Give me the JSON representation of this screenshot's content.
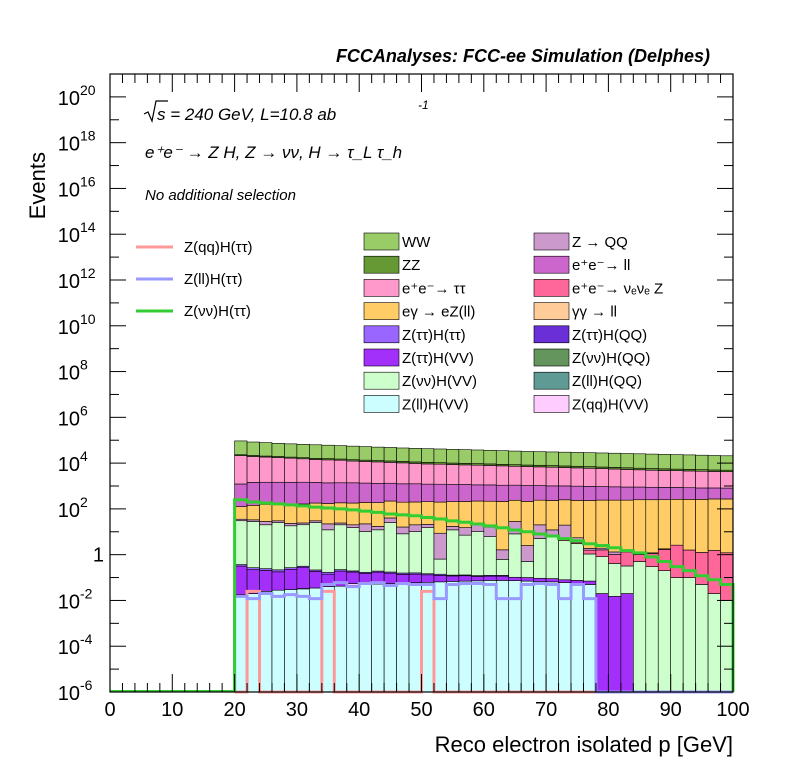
{
  "chart_data": {
    "type": "area",
    "header": "FCCAnalyses: FCC-ee Simulation (Delphes)",
    "xlabel": "Reco electron isolated p [GeV]",
    "ylabel": "Events",
    "xlim": [
      0,
      100
    ],
    "ylim": [
      1e-06,
      1e+21
    ],
    "yscale": "log",
    "x_ticks": [
      "0",
      "10",
      "20",
      "30",
      "40",
      "50",
      "60",
      "70",
      "80",
      "90",
      "100"
    ],
    "y_ticks": [
      {
        "base": "10",
        "exp": "20"
      },
      {
        "base": "10",
        "exp": "18"
      },
      {
        "base": "10",
        "exp": "16"
      },
      {
        "base": "10",
        "exp": "14"
      },
      {
        "base": "10",
        "exp": "12"
      },
      {
        "base": "10",
        "exp": "10"
      },
      {
        "base": "10",
        "exp": "8"
      },
      {
        "base": "10",
        "exp": "6"
      },
      {
        "base": "10",
        "exp": "4"
      },
      {
        "base": "10",
        "exp": "2"
      },
      {
        "base": "1",
        "exp": ""
      },
      {
        "base": "10",
        "exp": "-2"
      },
      {
        "base": "10",
        "exp": "-4"
      },
      {
        "base": "10",
        "exp": "-6"
      }
    ],
    "annotations": {
      "sqrt_s": "s = 240 GeV, L=10.8 ab",
      "lumi_exp": "-1",
      "process": "e⁺e⁻ → Z H, Z → νν, H → τ_L τ_h",
      "selection": "No additional selection"
    },
    "bin_edges": [
      20,
      22,
      24,
      26,
      28,
      30,
      32,
      34,
      36,
      38,
      40,
      42,
      44,
      46,
      48,
      50,
      52,
      54,
      56,
      58,
      60,
      62,
      64,
      66,
      68,
      70,
      72,
      74,
      76,
      78,
      80,
      82,
      84,
      86,
      88,
      90,
      92,
      94,
      96,
      98,
      100
    ],
    "stack": [
      {
        "name": "Z(ll)H(VV)",
        "color": "#ccfeff",
        "values": [
          0.018,
          0.02,
          0.025,
          0.028,
          0.03,
          0.032,
          0.035,
          0.04,
          0.042,
          0.045,
          0.05,
          0.052,
          0.055,
          0.058,
          0.06,
          0.062,
          0.065,
          0.068,
          0.07,
          0.072,
          0.075,
          0.075,
          0.073,
          0.07,
          0.068,
          0.065,
          0.06,
          0.055,
          0.05,
          1e-07,
          1e-07,
          1e-07,
          1e-07,
          1e-07,
          1e-07,
          1e-07,
          1e-07,
          1e-07,
          1e-07,
          1e-07
        ]
      },
      {
        "name": "Z(ll)H(QQ)",
        "color": "#609a95",
        "values": [
          0,
          0,
          0,
          0,
          0,
          0.001,
          0,
          0,
          0,
          0,
          0,
          0,
          0,
          0,
          0,
          0,
          0,
          0,
          0,
          0,
          0,
          0,
          0,
          0,
          0,
          0,
          0,
          0,
          0,
          0,
          0,
          0,
          0,
          0,
          0,
          0,
          0,
          0,
          0,
          0
        ]
      },
      {
        "name": "Z(qq)H(VV)",
        "color": "#ffccff",
        "values": [
          0,
          0,
          0,
          0,
          0,
          0,
          0,
          0,
          0,
          0.01,
          0,
          0,
          0,
          0,
          0,
          0,
          0,
          0,
          0,
          0,
          0,
          0,
          0,
          0,
          0,
          0,
          0,
          0,
          0,
          0,
          0,
          0,
          0,
          0,
          0,
          0,
          0,
          0,
          0,
          0
        ]
      },
      {
        "name": "Z(ττ)H(QQ)",
        "color": "#6a2fd7",
        "values": [
          0,
          0,
          0,
          0,
          0,
          0,
          0,
          0,
          0,
          0,
          3e-05,
          0,
          0,
          0,
          0,
          0,
          0,
          0,
          0,
          0,
          0,
          0,
          0,
          0,
          0,
          0,
          0,
          0,
          0,
          0,
          0,
          0,
          0,
          0,
          0,
          0,
          0,
          0,
          0,
          0
        ]
      },
      {
        "name": "Z(ττ)H(VV)",
        "color": "#a32ffb",
        "values": [
          0.3,
          0.2,
          0.18,
          0.15,
          0.2,
          0.25,
          0.15,
          0.1,
          0.15,
          0.12,
          0.1,
          0.12,
          0.1,
          0.08,
          0.08,
          0.07,
          0.06,
          0.05,
          0.05,
          0.04,
          0.04,
          0.04,
          0.03,
          0.03,
          0.025,
          0.025,
          0.02,
          0.02,
          0.02,
          0.02,
          0.015,
          0.02,
          0,
          0,
          0,
          0,
          0,
          0,
          0,
          0
        ]
      },
      {
        "name": "Z(ττ)H(ττ)",
        "color": "#9966ff",
        "values": [
          0.05,
          0.05,
          0.04,
          0.04,
          0.04,
          0.03,
          0.03,
          0.03,
          0.03,
          0.02,
          0.02,
          0.02,
          0.02,
          0.02,
          0.02,
          0.015,
          0.015,
          0.01,
          0.01,
          0.01,
          0.01,
          0.01,
          0,
          0,
          0,
          0,
          0,
          0,
          0,
          0,
          0,
          0,
          0,
          0,
          0,
          0,
          0,
          0,
          0,
          0
        ]
      },
      {
        "name": "Z(νν)H(VV)",
        "color": "#ccffcc",
        "values": [
          30,
          28,
          20,
          25,
          18,
          20,
          25,
          12,
          20,
          15,
          10,
          12,
          25,
          8,
          10,
          15,
          0.5,
          12,
          7,
          10,
          6,
          0.5,
          8,
          0.4,
          5,
          6,
          4,
          3,
          1,
          0.8,
          0.4,
          0.3,
          0.5,
          0.3,
          0.2,
          0.1,
          0.1,
          0.05,
          0.02,
          0.01
        ]
      },
      {
        "name": "Z(νν)H(QQ)",
        "color": "#64955d",
        "values": [
          0,
          0,
          0,
          0,
          0,
          0,
          0,
          0,
          0,
          0,
          0,
          0,
          0,
          0,
          0,
          0,
          0,
          0,
          0,
          0,
          0,
          0,
          0,
          0,
          0,
          0,
          0,
          0,
          0,
          0,
          0,
          0,
          0,
          0,
          0,
          0,
          0,
          0,
          0,
          0
        ]
      },
      {
        "name": "e⁺e⁻ → ν_e ν_e Z",
        "color": "#ff6699",
        "values": [
          0,
          0,
          0,
          0,
          0,
          0,
          0,
          0,
          0,
          0,
          0,
          0,
          0,
          0,
          0,
          0,
          0,
          0,
          0,
          0,
          0,
          0,
          0,
          0,
          0,
          0,
          0.5,
          0.4,
          0.5,
          0.8,
          0.6,
          1,
          0.5,
          0.8,
          1.5,
          2.5,
          1.5,
          1.2,
          1.5,
          1.2
        ]
      },
      {
        "name": "γγ → ll",
        "color": "#ffcc99",
        "values": [
          0,
          0,
          0,
          0,
          0,
          0,
          0,
          0,
          0,
          0,
          0,
          0,
          0,
          0,
          0,
          0,
          0,
          0,
          0,
          0,
          0,
          0,
          0,
          0,
          0,
          0,
          0,
          0,
          0,
          0,
          0,
          0,
          0,
          0,
          0,
          0,
          0,
          0,
          0,
          0
        ]
      },
      {
        "name": "Z → QQ",
        "color": "#cc99cc",
        "values": [
          5,
          5,
          8,
          5,
          5,
          4,
          5,
          10,
          4,
          5,
          12,
          5,
          15,
          8,
          10,
          6,
          8,
          5,
          8,
          10,
          10,
          1,
          20,
          2,
          15,
          6,
          15,
          2,
          0.3,
          0.3,
          0.3,
          0.2,
          0.1,
          0.1,
          0.1,
          0,
          0,
          0,
          0,
          0
        ]
      },
      {
        "name": "eγ → eZ(ll)",
        "color": "#ffcc66",
        "values": [
          90,
          110,
          130,
          130,
          130,
          140,
          150,
          150,
          160,
          160,
          170,
          170,
          180,
          180,
          180,
          185,
          190,
          190,
          195,
          200,
          200,
          210,
          210,
          210,
          220,
          220,
          230,
          230,
          230,
          240,
          240,
          240,
          250,
          250,
          250,
          260,
          260,
          260,
          270,
          270
        ]
      },
      {
        "name": "e⁺e⁻ → ll",
        "color": "#cc66cc",
        "values": [
          1100,
          1300,
          1300,
          1300,
          1300,
          1300,
          1250,
          1200,
          1200,
          1200,
          1150,
          1100,
          1100,
          1050,
          1050,
          1000,
          1000,
          950,
          950,
          900,
          900,
          870,
          850,
          830,
          800,
          780,
          760,
          750,
          730,
          700,
          680,
          660,
          650,
          630,
          620,
          600,
          580,
          560,
          550,
          540
        ]
      },
      {
        "name": "e⁺e⁻ → ττ",
        "color": "#ff99cc",
        "values": [
          20000,
          18000,
          17000,
          16000,
          15000,
          14000,
          13000,
          12500,
          12000,
          11000,
          10500,
          10000,
          9500,
          9000,
          8500,
          8000,
          7800,
          7500,
          7200,
          7000,
          6800,
          6500,
          6200,
          6000,
          5800,
          5600,
          5400,
          5200,
          5000,
          4800,
          4600,
          4400,
          4200,
          4000,
          3900,
          3800,
          3700,
          3600,
          3500,
          3400
        ]
      },
      {
        "name": "ZZ",
        "color": "#669933",
        "values": [
          2000,
          2000,
          1900,
          1900,
          1850,
          1800,
          1800,
          1750,
          1700,
          1700,
          1650,
          1600,
          1600,
          1550,
          1500,
          1500,
          1450,
          1400,
          1400,
          1350,
          1300,
          1300,
          1250,
          1200,
          1200,
          1150,
          1100,
          1100,
          1050,
          1000,
          1000,
          950,
          900,
          900,
          850,
          800,
          800,
          750,
          700,
          700
        ]
      },
      {
        "name": "WW",
        "color": "#99cc66",
        "values": [
          70000,
          62000,
          58000,
          54000,
          51000,
          49000,
          47000,
          45000,
          43000,
          41000,
          39000,
          37000,
          36000,
          34000,
          33000,
          32000,
          31000,
          30000,
          29000,
          28000,
          27000,
          26000,
          25000,
          24000,
          23500,
          23000,
          22500,
          22000,
          21500,
          21000,
          20500,
          20000,
          19500,
          19000,
          18500,
          18000,
          17500,
          17000,
          16500,
          16000
        ]
      }
    ],
    "signals": [
      {
        "name": "Z(qq)H(ττ)",
        "color": "#ff9999",
        "values": [
          1e-08,
          0.025,
          1e-08,
          1e-08,
          1e-08,
          1e-08,
          1e-08,
          0.025,
          1e-08,
          1e-08,
          1e-08,
          1e-08,
          1e-08,
          1e-08,
          1e-08,
          0.025,
          1e-08,
          1e-08,
          1e-08,
          1e-08,
          1e-08,
          1e-08,
          1e-08,
          1e-08,
          1e-08,
          1e-08,
          1e-08,
          1e-08,
          1e-08,
          1e-08,
          1e-08,
          1e-08,
          1e-08,
          1e-08,
          1e-08,
          1e-08,
          1e-08,
          1e-08,
          1e-08,
          1e-08
        ]
      },
      {
        "name": "Z(ll)H(ττ)",
        "color": "#9999ff",
        "values": [
          0.015,
          0.012,
          0.02,
          0.015,
          0.018,
          0.015,
          0.012,
          0.05,
          0.06,
          0.04,
          0.055,
          0.06,
          0.045,
          0.055,
          0.05,
          0.05,
          0.012,
          0.05,
          0.055,
          0.055,
          0.05,
          0.012,
          0.012,
          0.05,
          0.055,
          0.05,
          0.012,
          0.05,
          0.012,
          1e-08,
          1e-08,
          1e-08,
          1e-08,
          1e-08,
          1e-08,
          1e-08,
          1e-08,
          1e-08,
          1e-08,
          1e-08
        ]
      },
      {
        "name": "Z(νν)H(ττ)",
        "color": "#33cc33",
        "values": [
          250,
          200,
          180,
          165,
          150,
          135,
          120,
          110,
          100,
          90,
          80,
          70,
          60,
          55,
          50,
          42,
          36,
          30,
          26,
          22,
          18,
          15,
          12,
          10,
          8,
          6.5,
          5,
          4,
          3,
          2.5,
          2,
          1.5,
          1.2,
          0.8,
          0.5,
          0.3,
          0.2,
          0.12,
          0.08,
          0.05
        ]
      }
    ],
    "legend": {
      "left": [
        {
          "label": "Z(qq)H(ττ)",
          "color": "#ff9999"
        },
        {
          "label": "Z(ll)H(ττ)",
          "color": "#9999ff"
        },
        {
          "label": "Z(νν)H(ττ)",
          "color": "#33cc33"
        }
      ],
      "col1": [
        {
          "label": "WW",
          "color": "#99cc66"
        },
        {
          "label": "ZZ",
          "color": "#669933"
        },
        {
          "label": "e⁺e⁻→ ττ",
          "color": "#ff99cc"
        },
        {
          "label": "eγ → eZ(ll)",
          "color": "#ffcc66"
        },
        {
          "label": "Z(ττ)H(ττ)",
          "color": "#9966ff"
        },
        {
          "label": "Z(ττ)H(VV)",
          "color": "#a32ffb"
        },
        {
          "label": "Z(νν)H(VV)",
          "color": "#ccffcc"
        },
        {
          "label": "Z(ll)H(VV)",
          "color": "#ccfeff"
        }
      ],
      "col2": [
        {
          "label": "Z → QQ",
          "color": "#cc99cc"
        },
        {
          "label": "e⁺e⁻→ ll",
          "color": "#cc66cc"
        },
        {
          "label": "e⁺e⁻→ νₑνₑ Z",
          "color": "#ff6699"
        },
        {
          "label": "γγ → ll",
          "color": "#ffcc99"
        },
        {
          "label": "Z(ττ)H(QQ)",
          "color": "#6a2fd7"
        },
        {
          "label": "Z(νν)H(QQ)",
          "color": "#64955d"
        },
        {
          "label": "Z(ll)H(QQ)",
          "color": "#609a95"
        },
        {
          "label": "Z(qq)H(VV)",
          "color": "#ffccff"
        }
      ]
    }
  }
}
